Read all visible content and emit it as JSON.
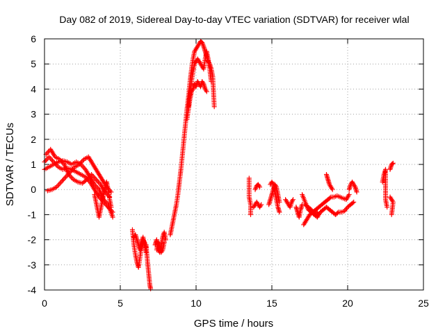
{
  "chart_data": {
    "type": "scatter",
    "title": "Day 082 of 2019, Sidereal Day-to-day VTEC variation (SDTVAR) for receiver wlal",
    "xlabel": "GPS time / hours",
    "ylabel": "SDTVAR / TECUs",
    "xlim": [
      0,
      25
    ],
    "ylim": [
      -4,
      6
    ],
    "xticks": [
      "0",
      "5",
      "10",
      "15",
      "20",
      "25"
    ],
    "yticks": [
      "-4",
      "-3",
      "-2",
      "-1",
      "0",
      "1",
      "2",
      "3",
      "4",
      "5",
      "6"
    ],
    "grid": true,
    "marker": "+",
    "color": "#ff0000",
    "segments": [
      {
        "x": [
          0.0,
          0.3,
          0.6,
          0.9,
          1.2,
          1.5,
          1.8,
          2.1,
          2.4,
          2.7,
          3.0,
          3.3,
          3.6,
          3.9,
          4.2,
          4.5
        ],
        "y": [
          1.1,
          1.3,
          1.1,
          0.9,
          0.8,
          0.85,
          0.8,
          0.7,
          0.6,
          0.5,
          0.3,
          0.0,
          -0.3,
          -0.5,
          -0.7,
          -0.9
        ]
      },
      {
        "x": [
          0.0,
          0.3,
          0.6,
          0.9,
          1.2,
          1.5,
          1.8,
          2.1,
          2.4,
          2.7,
          3.0,
          3.3,
          3.6,
          3.9,
          4.2,
          4.5
        ],
        "y": [
          0.8,
          0.9,
          1.0,
          1.1,
          1.15,
          1.1,
          1.0,
          1.1,
          1.0,
          0.8,
          0.5,
          0.2,
          0.0,
          -0.4,
          -0.6,
          -1.1
        ]
      },
      {
        "x": [
          0.1,
          0.4,
          0.7,
          1.0,
          1.3,
          1.6,
          1.9,
          2.2,
          2.5,
          2.8,
          3.1,
          3.4,
          3.7,
          4.0,
          4.3
        ],
        "y": [
          1.4,
          1.6,
          1.3,
          1.2,
          1.0,
          0.6,
          0.4,
          0.3,
          0.25,
          0.4,
          0.6,
          0.4,
          0.2,
          -0.1,
          -0.3
        ]
      },
      {
        "x": [
          0.2,
          0.5,
          0.8,
          1.1,
          1.4,
          1.7,
          2.0,
          2.3,
          2.6,
          2.9,
          3.2,
          3.5,
          3.8,
          4.1,
          4.4
        ],
        "y": [
          -0.05,
          0.0,
          0.1,
          0.3,
          0.5,
          0.7,
          0.9,
          1.0,
          1.2,
          1.3,
          1.0,
          0.7,
          0.4,
          0.1,
          -0.1
        ]
      },
      {
        "x": [
          3.3,
          3.4,
          3.5,
          3.6,
          3.7,
          3.8,
          3.9,
          4.0,
          4.1,
          4.2,
          4.3,
          4.4
        ],
        "y": [
          -0.2,
          -0.5,
          -0.8,
          -1.1,
          -0.8,
          -0.5,
          -0.2,
          0.1,
          0.3,
          0.0,
          -0.4,
          -0.7
        ]
      },
      {
        "x": [
          5.8,
          5.9,
          6.0,
          6.1,
          6.2,
          6.3,
          6.4,
          6.5,
          6.6,
          6.7
        ],
        "y": [
          -1.6,
          -2.2,
          -2.6,
          -2.9,
          -3.1,
          -2.7,
          -2.3,
          -2.0,
          -2.1,
          -2.3
        ]
      },
      {
        "x": [
          5.9,
          6.0,
          6.1,
          6.2,
          6.3,
          6.4,
          6.5,
          6.6,
          6.7
        ],
        "y": [
          -1.9,
          -1.8,
          -2.0,
          -2.2,
          -2.4,
          -2.1,
          -1.9,
          -2.2,
          -2.5
        ]
      },
      {
        "x": [
          6.7,
          6.8,
          6.85,
          6.9,
          6.95,
          7.0
        ],
        "y": [
          -2.2,
          -2.9,
          -3.2,
          -3.5,
          -3.8,
          -3.95
        ]
      },
      {
        "x": [
          7.3,
          7.4,
          7.5,
          7.6,
          7.7,
          7.8,
          7.9,
          8.0
        ],
        "y": [
          -2.2,
          -2.0,
          -2.4,
          -2.5,
          -2.2,
          -1.9,
          -1.7,
          -2.0
        ]
      },
      {
        "x": [
          7.4,
          7.5,
          7.6,
          7.7,
          7.8,
          7.9
        ],
        "y": [
          -2.4,
          -2.1,
          -2.3,
          -2.5,
          -2.4,
          -2.1
        ]
      },
      {
        "x": [
          8.3,
          8.4,
          8.5,
          8.6,
          8.7,
          8.8,
          8.9,
          9.0,
          9.1,
          9.2,
          9.3,
          9.4,
          9.5,
          9.6,
          9.7,
          9.8,
          9.9,
          10.0,
          10.1,
          10.2,
          10.3,
          10.4,
          10.5,
          10.6,
          10.7,
          10.8,
          10.9,
          11.0,
          11.1,
          11.2
        ],
        "y": [
          -1.8,
          -1.5,
          -1.2,
          -0.9,
          -0.6,
          -0.2,
          0.3,
          0.8,
          1.4,
          2.0,
          2.6,
          3.2,
          3.7,
          4.3,
          4.8,
          5.2,
          5.5,
          5.6,
          5.7,
          5.8,
          5.9,
          5.85,
          5.7,
          5.5,
          5.3,
          5.1,
          5.0,
          4.8,
          4.5,
          3.3
        ]
      },
      {
        "x": [
          9.5,
          9.6,
          9.7,
          9.8,
          9.9,
          10.0,
          10.1,
          10.2,
          10.3,
          10.4,
          10.5,
          10.6,
          10.7,
          10.8,
          10.9,
          11.0
        ],
        "y": [
          3.3,
          3.8,
          4.3,
          4.7,
          5.0,
          5.1,
          5.2,
          5.1,
          5.0,
          4.9,
          4.8,
          5.2,
          5.5,
          5.2,
          4.8,
          4.3
        ]
      },
      {
        "x": [
          9.4,
          9.5,
          9.6,
          9.7,
          9.8,
          9.9,
          10.0,
          10.1,
          10.2,
          10.3,
          10.4,
          10.5,
          10.6,
          10.7
        ],
        "y": [
          2.8,
          3.2,
          3.6,
          3.9,
          4.0,
          4.2,
          4.1,
          4.3,
          4.2,
          4.1,
          4.3,
          4.2,
          4.0,
          3.9
        ]
      },
      {
        "x": [
          13.5,
          13.5,
          13.6,
          13.6
        ],
        "y": [
          0.45,
          -0.3,
          -0.6,
          -1.0
        ]
      },
      {
        "x": [
          13.8,
          13.9,
          14.0,
          14.1,
          14.2,
          14.3
        ],
        "y": [
          -0.7,
          -0.6,
          -0.5,
          -0.6,
          -0.7,
          -0.6
        ]
      },
      {
        "x": [
          13.9,
          14.0,
          14.1,
          14.2
        ],
        "y": [
          0.0,
          0.15,
          0.2,
          0.1
        ]
      },
      {
        "x": [
          14.8,
          14.9,
          15.0,
          15.1,
          15.2,
          15.3,
          15.4,
          15.5
        ],
        "y": [
          -0.6,
          -0.4,
          -0.2,
          0.0,
          0.2,
          0.1,
          -0.2,
          -0.5
        ]
      },
      {
        "x": [
          14.9,
          15.0,
          15.1,
          15.2,
          15.3,
          15.4,
          15.5
        ],
        "y": [
          0.2,
          0.3,
          0.2,
          -0.1,
          -0.4,
          -0.7,
          -0.9
        ]
      },
      {
        "x": [
          15.9,
          16.0,
          16.1,
          16.2,
          16.3,
          16.4
        ],
        "y": [
          -0.4,
          -0.5,
          -0.6,
          -0.7,
          -0.5,
          -0.4
        ]
      },
      {
        "x": [
          16.6,
          16.7,
          16.8,
          16.9,
          17.0
        ],
        "y": [
          -0.7,
          -0.9,
          -1.1,
          -0.8,
          -0.6
        ]
      },
      {
        "x": [
          17.1,
          17.3,
          17.5,
          17.7,
          17.9,
          18.1,
          18.3,
          18.5,
          18.7,
          18.9,
          19.1,
          19.3,
          19.5,
          19.7,
          19.9,
          20.1
        ],
        "y": [
          -1.4,
          -1.2,
          -1.0,
          -0.9,
          -0.8,
          -0.7,
          -0.6,
          -0.5,
          -0.4,
          -0.3,
          -0.3,
          -0.25,
          -0.3,
          -0.35,
          -0.4,
          -0.2
        ]
      },
      {
        "x": [
          17.2,
          17.4,
          17.6,
          17.8,
          18.0,
          18.2,
          18.4,
          18.6,
          18.8,
          19.0,
          19.2,
          19.4,
          19.6,
          19.8,
          20.0,
          20.2,
          20.4
        ],
        "y": [
          -0.6,
          -0.7,
          -0.8,
          -1.0,
          -1.1,
          -0.9,
          -0.8,
          -0.7,
          -0.8,
          -0.9,
          -1.0,
          -0.9,
          -0.9,
          -0.85,
          -0.7,
          -0.6,
          -0.5
        ]
      },
      {
        "x": [
          17.0,
          17.2,
          17.4,
          17.6,
          17.8,
          18.0
        ],
        "y": [
          -0.2,
          -0.5,
          -0.8,
          -0.9,
          -1.0,
          -0.9
        ]
      },
      {
        "x": [
          18.6,
          18.7,
          18.8,
          18.9,
          19.0
        ],
        "y": [
          0.6,
          0.4,
          0.2,
          0.1,
          0.0
        ]
      },
      {
        "x": [
          20.1,
          20.2,
          20.3,
          20.4,
          20.5,
          20.6
        ],
        "y": [
          0.0,
          0.2,
          0.3,
          0.2,
          0.1,
          -0.1
        ]
      },
      {
        "x": [
          22.3,
          22.4,
          22.5,
          22.5,
          22.6
        ],
        "y": [
          0.3,
          0.6,
          0.8,
          -0.4,
          -0.7
        ]
      },
      {
        "x": [
          22.8,
          22.9,
          23.0
        ],
        "y": [
          0.8,
          1.0,
          1.05
        ]
      },
      {
        "x": [
          22.8,
          22.9,
          23.0,
          22.9
        ],
        "y": [
          -0.3,
          -0.4,
          -0.5,
          -1.0
        ]
      }
    ]
  }
}
